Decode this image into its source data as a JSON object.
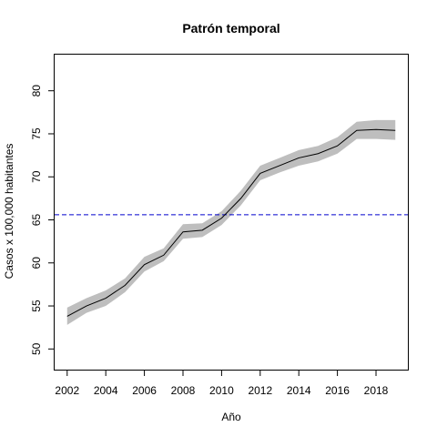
{
  "chart_data": {
    "type": "line",
    "title": "Patrón temporal",
    "xlabel": "Año",
    "ylabel": "Casos x 100,000 habitantes",
    "xlim": [
      2001.35,
      2019.65
    ],
    "ylim": [
      47.6,
      84.2
    ],
    "xticks": [
      2002,
      2004,
      2006,
      2008,
      2010,
      2012,
      2014,
      2016,
      2018
    ],
    "yticks": [
      50,
      55,
      60,
      65,
      70,
      75,
      80
    ],
    "grid": false,
    "legend": "none",
    "x": [
      2002,
      2003,
      2004,
      2005,
      2006,
      2007,
      2008,
      2009,
      2010,
      2011,
      2012,
      2013,
      2014,
      2015,
      2016,
      2017,
      2018,
      2019
    ],
    "series": [
      {
        "values": [
          53.8,
          55.0,
          55.9,
          57.4,
          59.8,
          60.9,
          63.6,
          63.8,
          65.2,
          67.5,
          70.4,
          71.3,
          72.2,
          72.7,
          73.6,
          75.4,
          75.5,
          75.4
        ],
        "lower": [
          52.8,
          54.2,
          55.0,
          56.6,
          59.0,
          60.2,
          62.8,
          63.0,
          64.4,
          66.7,
          69.6,
          70.5,
          71.3,
          71.8,
          72.7,
          74.4,
          74.4,
          74.3
        ],
        "upper": [
          54.8,
          55.9,
          56.8,
          58.2,
          60.7,
          61.7,
          64.5,
          64.6,
          66.0,
          68.4,
          71.3,
          72.2,
          73.1,
          73.6,
          74.6,
          76.4,
          76.6,
          76.6
        ],
        "color": "#000000",
        "band_color": "#bebebe"
      }
    ],
    "reference_line": {
      "y": 65.6,
      "style": "dashed",
      "color": "#0000cd"
    }
  }
}
